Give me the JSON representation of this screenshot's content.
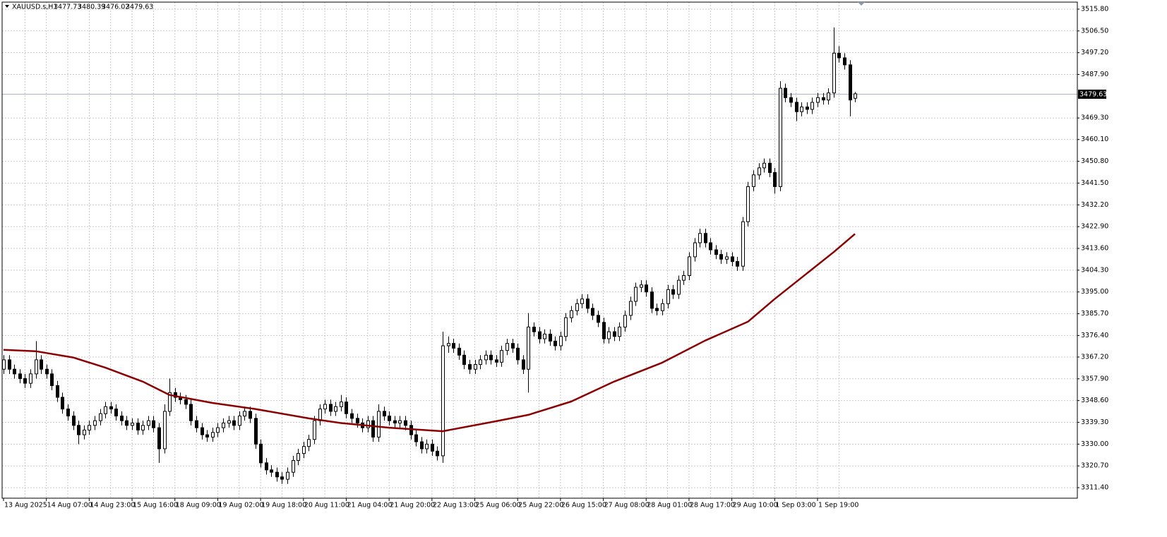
{
  "chart_data": {
    "type": "candlestick",
    "title": "XAUUSD.s,H1",
    "categories": [
      "13 Aug 2025",
      null,
      null,
      null,
      null,
      null,
      null,
      null,
      "14 Aug 07:00",
      null,
      null,
      null,
      null,
      null,
      null,
      null,
      "14 Aug 23:00",
      null,
      null,
      null,
      null,
      null,
      null,
      null,
      "15 Aug 16:00",
      null,
      null,
      null,
      null,
      null,
      null,
      null,
      "18 Aug 09:00",
      null,
      null,
      null,
      null,
      null,
      null,
      null,
      "19 Aug 02:00",
      null,
      null,
      null,
      null,
      null,
      null,
      null,
      "19 Aug 18:00",
      null,
      null,
      null,
      null,
      null,
      null,
      null,
      "20 Aug 11:00",
      null,
      null,
      null,
      null,
      null,
      null,
      null,
      "21 Aug 04:00",
      null,
      null,
      null,
      null,
      null,
      null,
      null,
      "21 Aug 20:00",
      null,
      null,
      null,
      null,
      null,
      null,
      null,
      "22 Aug 13:00",
      null,
      null,
      null,
      null,
      null,
      null,
      null,
      "25 Aug 06:00",
      null,
      null,
      null,
      null,
      null,
      null,
      null,
      "25 Aug 22:00",
      null,
      null,
      null,
      null,
      null,
      null,
      null,
      "26 Aug 15:00",
      null,
      null,
      null,
      null,
      null,
      null,
      null,
      "27 Aug 08:00",
      null,
      null,
      null,
      null,
      null,
      null,
      null,
      "28 Aug 01:00",
      null,
      null,
      null,
      null,
      null,
      null,
      null,
      "28 Aug 17:00",
      null,
      null,
      null,
      null,
      null,
      null,
      null,
      "29 Aug 10:00",
      null,
      null,
      null,
      null,
      null,
      null,
      null,
      "1 Sep 03:00",
      null,
      null,
      null,
      null,
      null,
      null,
      null,
      "1 Sep 19:00",
      null,
      null,
      null,
      null,
      null,
      null,
      null
    ],
    "open": [
      3362,
      3366,
      3362,
      3360,
      3358,
      3356,
      3360,
      3366,
      3362,
      3360,
      3355,
      3350,
      3345,
      3342,
      3338,
      3334,
      3336,
      3338,
      3340,
      3343,
      3346,
      3345,
      3342,
      3340,
      3338,
      3339,
      3336,
      3338,
      3340,
      3337,
      3328,
      3344,
      3352,
      3350,
      3349,
      3347,
      3340,
      3337,
      3334,
      3333,
      3335,
      3337,
      3339,
      3340,
      3338,
      3342,
      3344,
      3341,
      3330,
      3322,
      3319,
      3318,
      3316,
      3315,
      3318,
      3323,
      3326,
      3329,
      3332,
      3340,
      3345,
      3347,
      3344,
      3346,
      3348,
      3343,
      3341,
      3339,
      3337,
      3340,
      3333,
      3344,
      3342,
      3340,
      3339,
      3340,
      3338,
      3334,
      3331,
      3328,
      3330,
      3327,
      3325,
      3372,
      3373,
      3371,
      3368,
      3364,
      3362,
      3364,
      3366,
      3368,
      3366,
      3365,
      3370,
      3373,
      3371,
      3366,
      3362,
      3380,
      3378,
      3375,
      3377,
      3374,
      3372,
      3376,
      3384,
      3387,
      3390,
      3392,
      3388,
      3385,
      3382,
      3375,
      3378,
      3376,
      3380,
      3385,
      3391,
      3397,
      3398,
      3395,
      3388,
      3387,
      3390,
      3396,
      3394,
      3400,
      3402,
      3410,
      3416,
      3420,
      3416,
      3413,
      3411,
      3409,
      3410,
      3408,
      3406,
      3425,
      3440,
      3445,
      3448,
      3450,
      3446,
      3440,
      3482,
      3478,
      3476,
      3472,
      3474,
      3473,
      3476,
      3478,
      3477,
      3480,
      3497,
      3495,
      3492,
      3477.73
    ],
    "high": [
      3368,
      3368,
      3364,
      3362,
      3360,
      3362,
      3374,
      3368,
      3364,
      3362,
      3357,
      3352,
      3347,
      3344,
      3340,
      3338,
      3340,
      3342,
      3345,
      3348,
      3348,
      3347,
      3344,
      3342,
      3341,
      3341,
      3340,
      3342,
      3342,
      3339,
      3347,
      3358,
      3354,
      3352,
      3351,
      3349,
      3342,
      3339,
      3336,
      3337,
      3339,
      3341,
      3342,
      3342,
      3344,
      3346,
      3346,
      3343,
      3332,
      3324,
      3321,
      3320,
      3318,
      3320,
      3325,
      3328,
      3331,
      3334,
      3342,
      3347,
      3349,
      3349,
      3348,
      3351,
      3350,
      3345,
      3343,
      3341,
      3342,
      3342,
      3347,
      3346,
      3344,
      3342,
      3342,
      3342,
      3340,
      3336,
      3333,
      3332,
      3332,
      3329,
      3378,
      3376,
      3375,
      3373,
      3370,
      3366,
      3366,
      3368,
      3370,
      3370,
      3368,
      3372,
      3375,
      3375,
      3373,
      3368,
      3386,
      3382,
      3380,
      3379,
      3379,
      3376,
      3378,
      3386,
      3389,
      3392,
      3394,
      3394,
      3390,
      3387,
      3384,
      3380,
      3380,
      3382,
      3387,
      3393,
      3399,
      3400,
      3400,
      3397,
      3390,
      3392,
      3398,
      3398,
      3402,
      3404,
      3412,
      3418,
      3422,
      3422,
      3418,
      3415,
      3413,
      3412,
      3412,
      3410,
      3427,
      3442,
      3447,
      3450,
      3452,
      3452,
      3448,
      3485,
      3484,
      3480,
      3478,
      3476,
      3476,
      3478,
      3480,
      3480,
      3482,
      3508,
      3500,
      3497,
      3494,
      3480.39
    ],
    "low": [
      3360,
      3360,
      3358,
      3356,
      3354,
      3354,
      3358,
      3360,
      3358,
      3353,
      3348,
      3343,
      3340,
      3336,
      3330,
      3332,
      3334,
      3336,
      3338,
      3341,
      3343,
      3340,
      3338,
      3336,
      3336,
      3334,
      3334,
      3336,
      3335,
      3322,
      3326,
      3342,
      3348,
      3347,
      3345,
      3338,
      3335,
      3332,
      3331,
      3331,
      3333,
      3335,
      3337,
      3336,
      3336,
      3340,
      3339,
      3328,
      3320,
      3317,
      3316,
      3314,
      3313,
      3313,
      3316,
      3321,
      3324,
      3327,
      3330,
      3338,
      3343,
      3342,
      3342,
      3344,
      3341,
      3339,
      3337,
      3335,
      3335,
      3331,
      3331,
      3340,
      3338,
      3337,
      3337,
      3336,
      3332,
      3329,
      3326,
      3326,
      3325,
      3323,
      3322,
      3369,
      3369,
      3366,
      3362,
      3360,
      3360,
      3362,
      3364,
      3364,
      3363,
      3363,
      3368,
      3369,
      3364,
      3360,
      3352,
      3376,
      3373,
      3373,
      3372,
      3370,
      3370,
      3374,
      3382,
      3385,
      3388,
      3386,
      3383,
      3380,
      3373,
      3373,
      3374,
      3374,
      3378,
      3383,
      3389,
      3395,
      3393,
      3386,
      3385,
      3385,
      3388,
      3392,
      3392,
      3398,
      3400,
      3408,
      3414,
      3414,
      3411,
      3409,
      3407,
      3407,
      3406,
      3404,
      3404,
      3423,
      3438,
      3443,
      3446,
      3444,
      3437,
      3438,
      3476,
      3474,
      3468,
      3470,
      3471,
      3471,
      3474,
      3475,
      3475,
      3478,
      3493,
      3490,
      3470,
      3476.02
    ],
    "close": [
      3366,
      3362,
      3360,
      3358,
      3356,
      3360,
      3366,
      3362,
      3360,
      3355,
      3350,
      3345,
      3342,
      3338,
      3334,
      3336,
      3338,
      3340,
      3343,
      3346,
      3345,
      3342,
      3340,
      3338,
      3339,
      3336,
      3338,
      3340,
      3337,
      3328,
      3344,
      3352,
      3350,
      3349,
      3347,
      3340,
      3337,
      3334,
      3333,
      3335,
      3337,
      3339,
      3340,
      3338,
      3342,
      3344,
      3341,
      3330,
      3322,
      3319,
      3318,
      3316,
      3315,
      3318,
      3323,
      3326,
      3329,
      3332,
      3340,
      3345,
      3347,
      3344,
      3346,
      3348,
      3343,
      3341,
      3339,
      3337,
      3340,
      3333,
      3344,
      3342,
      3340,
      3339,
      3340,
      3338,
      3334,
      3331,
      3328,
      3330,
      3327,
      3325,
      3372,
      3373,
      3371,
      3368,
      3364,
      3362,
      3364,
      3366,
      3368,
      3366,
      3365,
      3370,
      3373,
      3371,
      3366,
      3362,
      3380,
      3378,
      3375,
      3377,
      3374,
      3372,
      3376,
      3384,
      3387,
      3390,
      3392,
      3388,
      3385,
      3382,
      3375,
      3378,
      3376,
      3380,
      3385,
      3391,
      3397,
      3398,
      3395,
      3388,
      3387,
      3390,
      3396,
      3394,
      3400,
      3402,
      3410,
      3416,
      3420,
      3416,
      3413,
      3411,
      3409,
      3410,
      3408,
      3406,
      3425,
      3440,
      3445,
      3448,
      3450,
      3446,
      3440,
      3482,
      3478,
      3476,
      3472,
      3474,
      3473,
      3476,
      3478,
      3477,
      3480,
      3497,
      3495,
      3492,
      3477,
      3479.63
    ],
    "up_color": "#ffffff",
    "down_color": "#000000",
    "moving_average": {
      "color": "#8b0000",
      "x": [
        0,
        6,
        13,
        19,
        26,
        31,
        39,
        47,
        57,
        63,
        72,
        82,
        92,
        98,
        106,
        114,
        123,
        131,
        139,
        144,
        155,
        159
      ],
      "values": [
        3370.3,
        3369.7,
        3367,
        3362.7,
        3356.7,
        3351,
        3347.6,
        3345,
        3341,
        3339,
        3337,
        3335.5,
        3339.8,
        3342.5,
        3348.2,
        3356.7,
        3364.8,
        3374.2,
        3382.3,
        3392,
        3412,
        3419.8
      ]
    },
    "ylim": [
      3306.9,
      3518.8
    ],
    "yticks": [
      {
        "value": 3515.8,
        "label": "3515.80"
      },
      {
        "value": 3506.5,
        "label": "3506.50"
      },
      {
        "value": 3497.2,
        "label": "3497.20"
      },
      {
        "value": 3487.9,
        "label": "3487.90"
      },
      {
        "value": 3469.3,
        "label": "3469.30"
      },
      {
        "value": 3460.1,
        "label": "3460.10"
      },
      {
        "value": 3450.8,
        "label": "3450.80"
      },
      {
        "value": 3441.5,
        "label": "3441.50"
      },
      {
        "value": 3432.2,
        "label": "3432.20"
      },
      {
        "value": 3422.9,
        "label": "3422.90"
      },
      {
        "value": 3413.6,
        "label": "3413.60"
      },
      {
        "value": 3404.3,
        "label": "3404.30"
      },
      {
        "value": 3395,
        "label": "3395.00"
      },
      {
        "value": 3385.7,
        "label": "3385.70"
      },
      {
        "value": 3376.4,
        "label": "3376.40"
      },
      {
        "value": 3367.2,
        "label": "3367.20"
      },
      {
        "value": 3357.9,
        "label": "3357.90"
      },
      {
        "value": 3348.6,
        "label": "3348.60"
      },
      {
        "value": 3339.3,
        "label": "3339.30"
      },
      {
        "value": 3330,
        "label": "3330.00"
      },
      {
        "value": 3320.7,
        "label": "3320.70"
      },
      {
        "value": 3311.4,
        "label": "3311.40"
      }
    ],
    "grid": true
  }
}
